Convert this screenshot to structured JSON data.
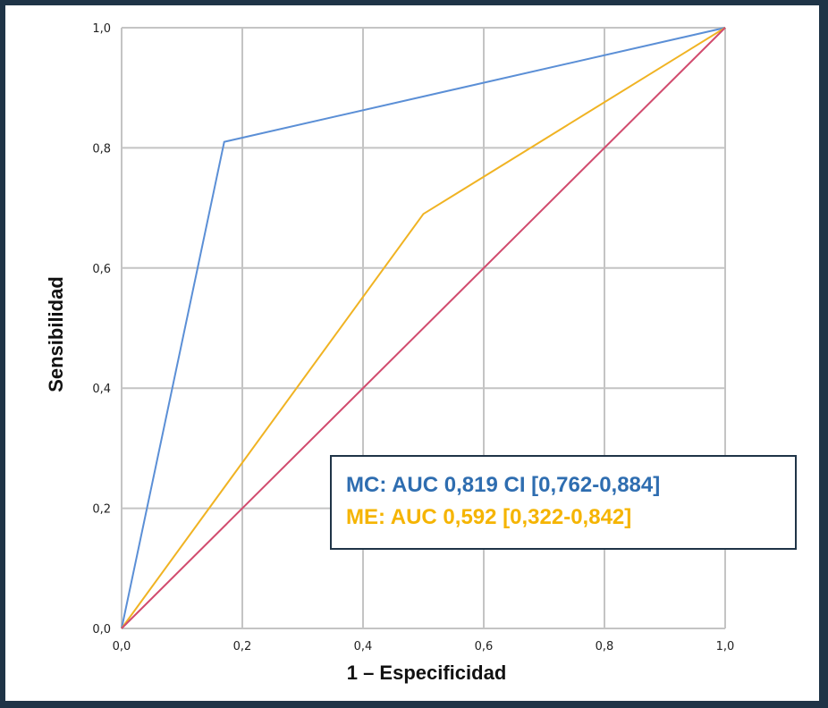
{
  "chart_data": {
    "type": "line",
    "xlabel": "1 – Especificidad",
    "ylabel": "Sensibilidad",
    "xlim": [
      0,
      1
    ],
    "ylim": [
      0,
      1
    ],
    "grid": true,
    "x_ticks": [
      "0,0",
      "0,2",
      "0,4",
      "0,6",
      "0,8",
      "1,0"
    ],
    "y_ticks": [
      "0,0",
      "0,2",
      "0,4",
      "0,6",
      "0,8",
      "1,0"
    ],
    "series": [
      {
        "name": "MC",
        "color": "#5b8fd6",
        "x": [
          0,
          0.17,
          1
        ],
        "y": [
          0,
          0.81,
          1
        ]
      },
      {
        "name": "ME",
        "color": "#f0b323",
        "x": [
          0,
          0.5,
          1
        ],
        "y": [
          0,
          0.69,
          1
        ]
      },
      {
        "color": "#d14b6e",
        "x": [
          0,
          1
        ],
        "y": [
          0,
          1
        ]
      }
    ],
    "legend": {
      "placement": "bottom-right",
      "entries": [
        {
          "text": "MC: AUC 0,819 CI [0,762-0,884]",
          "color": "#2e6db0"
        },
        {
          "text": "ME: AUC 0,592 [0,322-0,842]",
          "color": "#f5b400"
        }
      ]
    }
  }
}
